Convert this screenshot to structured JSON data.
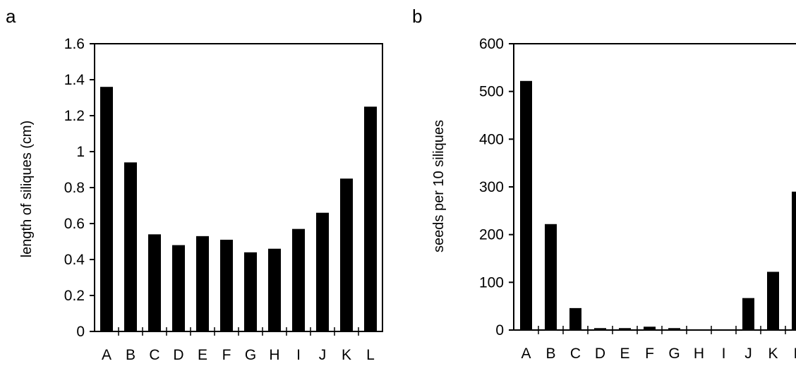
{
  "chart_data": [
    {
      "type": "bar",
      "panel_label": "a",
      "title": "",
      "xlabel": "",
      "ylabel": "length of siliques (cm)",
      "categories": [
        "A",
        "B",
        "C",
        "D",
        "E",
        "F",
        "G",
        "H",
        "I",
        "J",
        "K",
        "L"
      ],
      "values": [
        1.36,
        0.94,
        0.54,
        0.48,
        0.53,
        0.51,
        0.44,
        0.46,
        0.57,
        0.66,
        0.85,
        1.25
      ],
      "ylim": [
        0,
        1.6
      ],
      "yticks": [
        "0",
        "0.2",
        "0.4",
        "0.6",
        "0.8",
        "1",
        "1.2",
        "1.4",
        "1.6"
      ],
      "grid": false,
      "bar_color": "#000000"
    },
    {
      "type": "bar",
      "panel_label": "b",
      "title": "",
      "xlabel": "",
      "ylabel": "seeds per 10 siliques",
      "categories": [
        "A",
        "B",
        "C",
        "D",
        "E",
        "F",
        "G",
        "H",
        "I",
        "J",
        "K",
        "L"
      ],
      "values": [
        522,
        222,
        46,
        4,
        4,
        7,
        4,
        0,
        0,
        67,
        122,
        290
      ],
      "ylim": [
        0,
        600
      ],
      "yticks": [
        "0",
        "100",
        "200",
        "300",
        "400",
        "500",
        "600"
      ],
      "grid": false,
      "bar_color": "#000000"
    }
  ]
}
